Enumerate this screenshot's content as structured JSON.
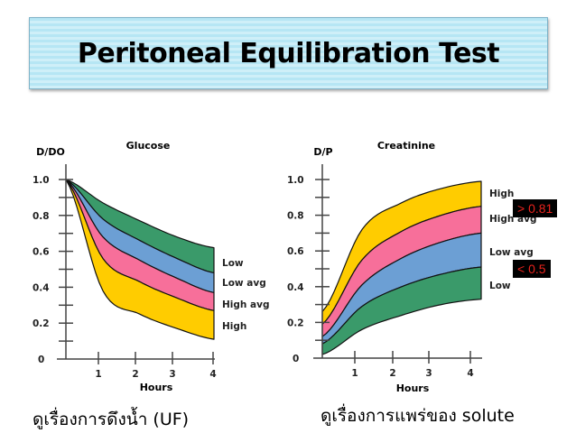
{
  "title": "Peritoneal Equilibration Test",
  "captions": {
    "left": "ดูเรื่องการดึงน้ำ (UF)",
    "right": "ดูเรื่องการแพร่ของ solute"
  },
  "badges": {
    "high": "> 0.81",
    "low": "< 0.5"
  },
  "colors": {
    "high": "#ffcc00",
    "high_avg": "#f76f9a",
    "low_avg": "#6c9fd4",
    "low": "#3a9a6a",
    "badge_bg": "#000000",
    "badge_text": "#e8231d",
    "title_bg": "#b6e6f4"
  },
  "chart_data": [
    {
      "type": "area",
      "title": "Glucose",
      "ylabel": "D/DO",
      "xlabel": "Hours",
      "x": [
        0,
        1,
        2,
        3,
        4
      ],
      "xticks": [
        "1",
        "2",
        "3",
        "4"
      ],
      "yticks": [
        "0",
        "0.2",
        "0.4",
        "0.6",
        "0.8",
        "1.0"
      ],
      "ylim": [
        0,
        1.0
      ],
      "xlim": [
        0,
        4
      ],
      "grid": false,
      "legend_position": "right",
      "boundaries": [
        {
          "name": "upper (Low top)",
          "values": [
            1.0,
            0.87,
            0.77,
            0.68,
            0.62
          ]
        },
        {
          "name": "Low / Low avg",
          "values": [
            1.0,
            0.78,
            0.66,
            0.56,
            0.48
          ]
        },
        {
          "name": "Low avg / High avg",
          "values": [
            1.0,
            0.68,
            0.55,
            0.45,
            0.37
          ]
        },
        {
          "name": "High avg / High",
          "values": [
            1.0,
            0.56,
            0.43,
            0.34,
            0.27
          ]
        },
        {
          "name": "lower (High bottom)",
          "values": [
            1.0,
            0.38,
            0.25,
            0.17,
            0.11
          ]
        }
      ],
      "series": [
        {
          "name": "Low",
          "color": "#3a9a6a"
        },
        {
          "name": "Low avg",
          "color": "#6c9fd4"
        },
        {
          "name": "High avg",
          "color": "#f76f9a"
        },
        {
          "name": "High",
          "color": "#ffcc00"
        }
      ]
    },
    {
      "type": "area",
      "title": "Creatinine",
      "ylabel": "D/P",
      "xlabel": "Hours",
      "x": [
        0,
        1,
        2,
        3,
        4
      ],
      "xticks": [
        "1",
        "2",
        "3",
        "4"
      ],
      "yticks": [
        "0",
        "0.2",
        "0.4",
        "0.6",
        "0.8",
        "1.0"
      ],
      "ylim": [
        0,
        1.0
      ],
      "xlim": [
        0,
        4
      ],
      "grid": false,
      "legend_position": "right",
      "boundaries": [
        {
          "name": "upper (High top)",
          "values": [
            0.26,
            0.72,
            0.87,
            0.95,
            0.99
          ]
        },
        {
          "name": "High / High avg",
          "values": [
            0.19,
            0.55,
            0.71,
            0.8,
            0.85
          ]
        },
        {
          "name": "High avg / Low avg",
          "values": [
            0.12,
            0.41,
            0.56,
            0.65,
            0.7
          ]
        },
        {
          "name": "Low avg / Low",
          "values": [
            0.08,
            0.29,
            0.4,
            0.47,
            0.51
          ]
        },
        {
          "name": "lower (Low bottom)",
          "values": [
            0.02,
            0.16,
            0.24,
            0.3,
            0.33
          ]
        }
      ],
      "series": [
        {
          "name": "High",
          "color": "#ffcc00"
        },
        {
          "name": "High avg",
          "color": "#f76f9a"
        },
        {
          "name": "Low avg",
          "color": "#6c9fd4"
        },
        {
          "name": "Low",
          "color": "#3a9a6a"
        }
      ],
      "annotations": [
        "> 0.81",
        "< 0.5"
      ]
    }
  ]
}
